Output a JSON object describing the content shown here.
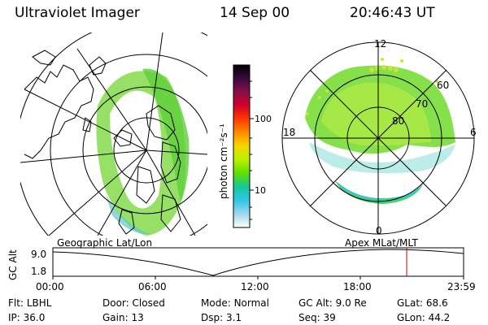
{
  "header": {
    "instrument": "Ultraviolet Imager",
    "date": "14 Sep 00",
    "time": "20:46:43 UT"
  },
  "colorbar": {
    "unit_label": "photon cm⁻²s⁻¹",
    "ticks": [
      "100",
      "10"
    ],
    "colors": [
      "#000000",
      "#3b0a3f",
      "#8a0f4a",
      "#d4002a",
      "#ff3a00",
      "#ff8c00",
      "#f2d800",
      "#b9f000",
      "#5ee000",
      "#16c79a",
      "#30c6e8",
      "#a0d8ec",
      "#ffffff"
    ]
  },
  "polar_plot": {
    "labels": {
      "top": "12",
      "bottom": "0",
      "left": "18",
      "right": "6"
    },
    "lat_labels": [
      "60",
      "70",
      "80"
    ]
  },
  "map_labels": {
    "left_panel": "Geographic Lat/Lon",
    "right_panel": "Apex MLat/MLT"
  },
  "altitude_plot": {
    "axis_title": "GC Alt",
    "y_ticks": [
      "9.0",
      "1.8"
    ],
    "x_ticks": [
      "00:00",
      "06:00",
      "12:00",
      "18:00",
      "23:59"
    ],
    "marker_color": "#d00000",
    "marker_time": "20:46:43"
  },
  "status": {
    "row1": [
      {
        "label": "Flt:",
        "value": "LBHL"
      },
      {
        "label": "Door:",
        "value": "Closed"
      },
      {
        "label": "Mode:",
        "value": "Normal"
      },
      {
        "label": "GC Alt:",
        "value": "9.0 Re"
      },
      {
        "label": "GLat:",
        "value": "68.6"
      }
    ],
    "row2": [
      {
        "label": "IP:",
        "value": "36.0"
      },
      {
        "label": "Gain:",
        "value": "13"
      },
      {
        "label": "Dsp:",
        "value": "3.1"
      },
      {
        "label": "Seq:",
        "value": "39"
      },
      {
        "label": "GLon:",
        "value": "44.2"
      }
    ]
  }
}
